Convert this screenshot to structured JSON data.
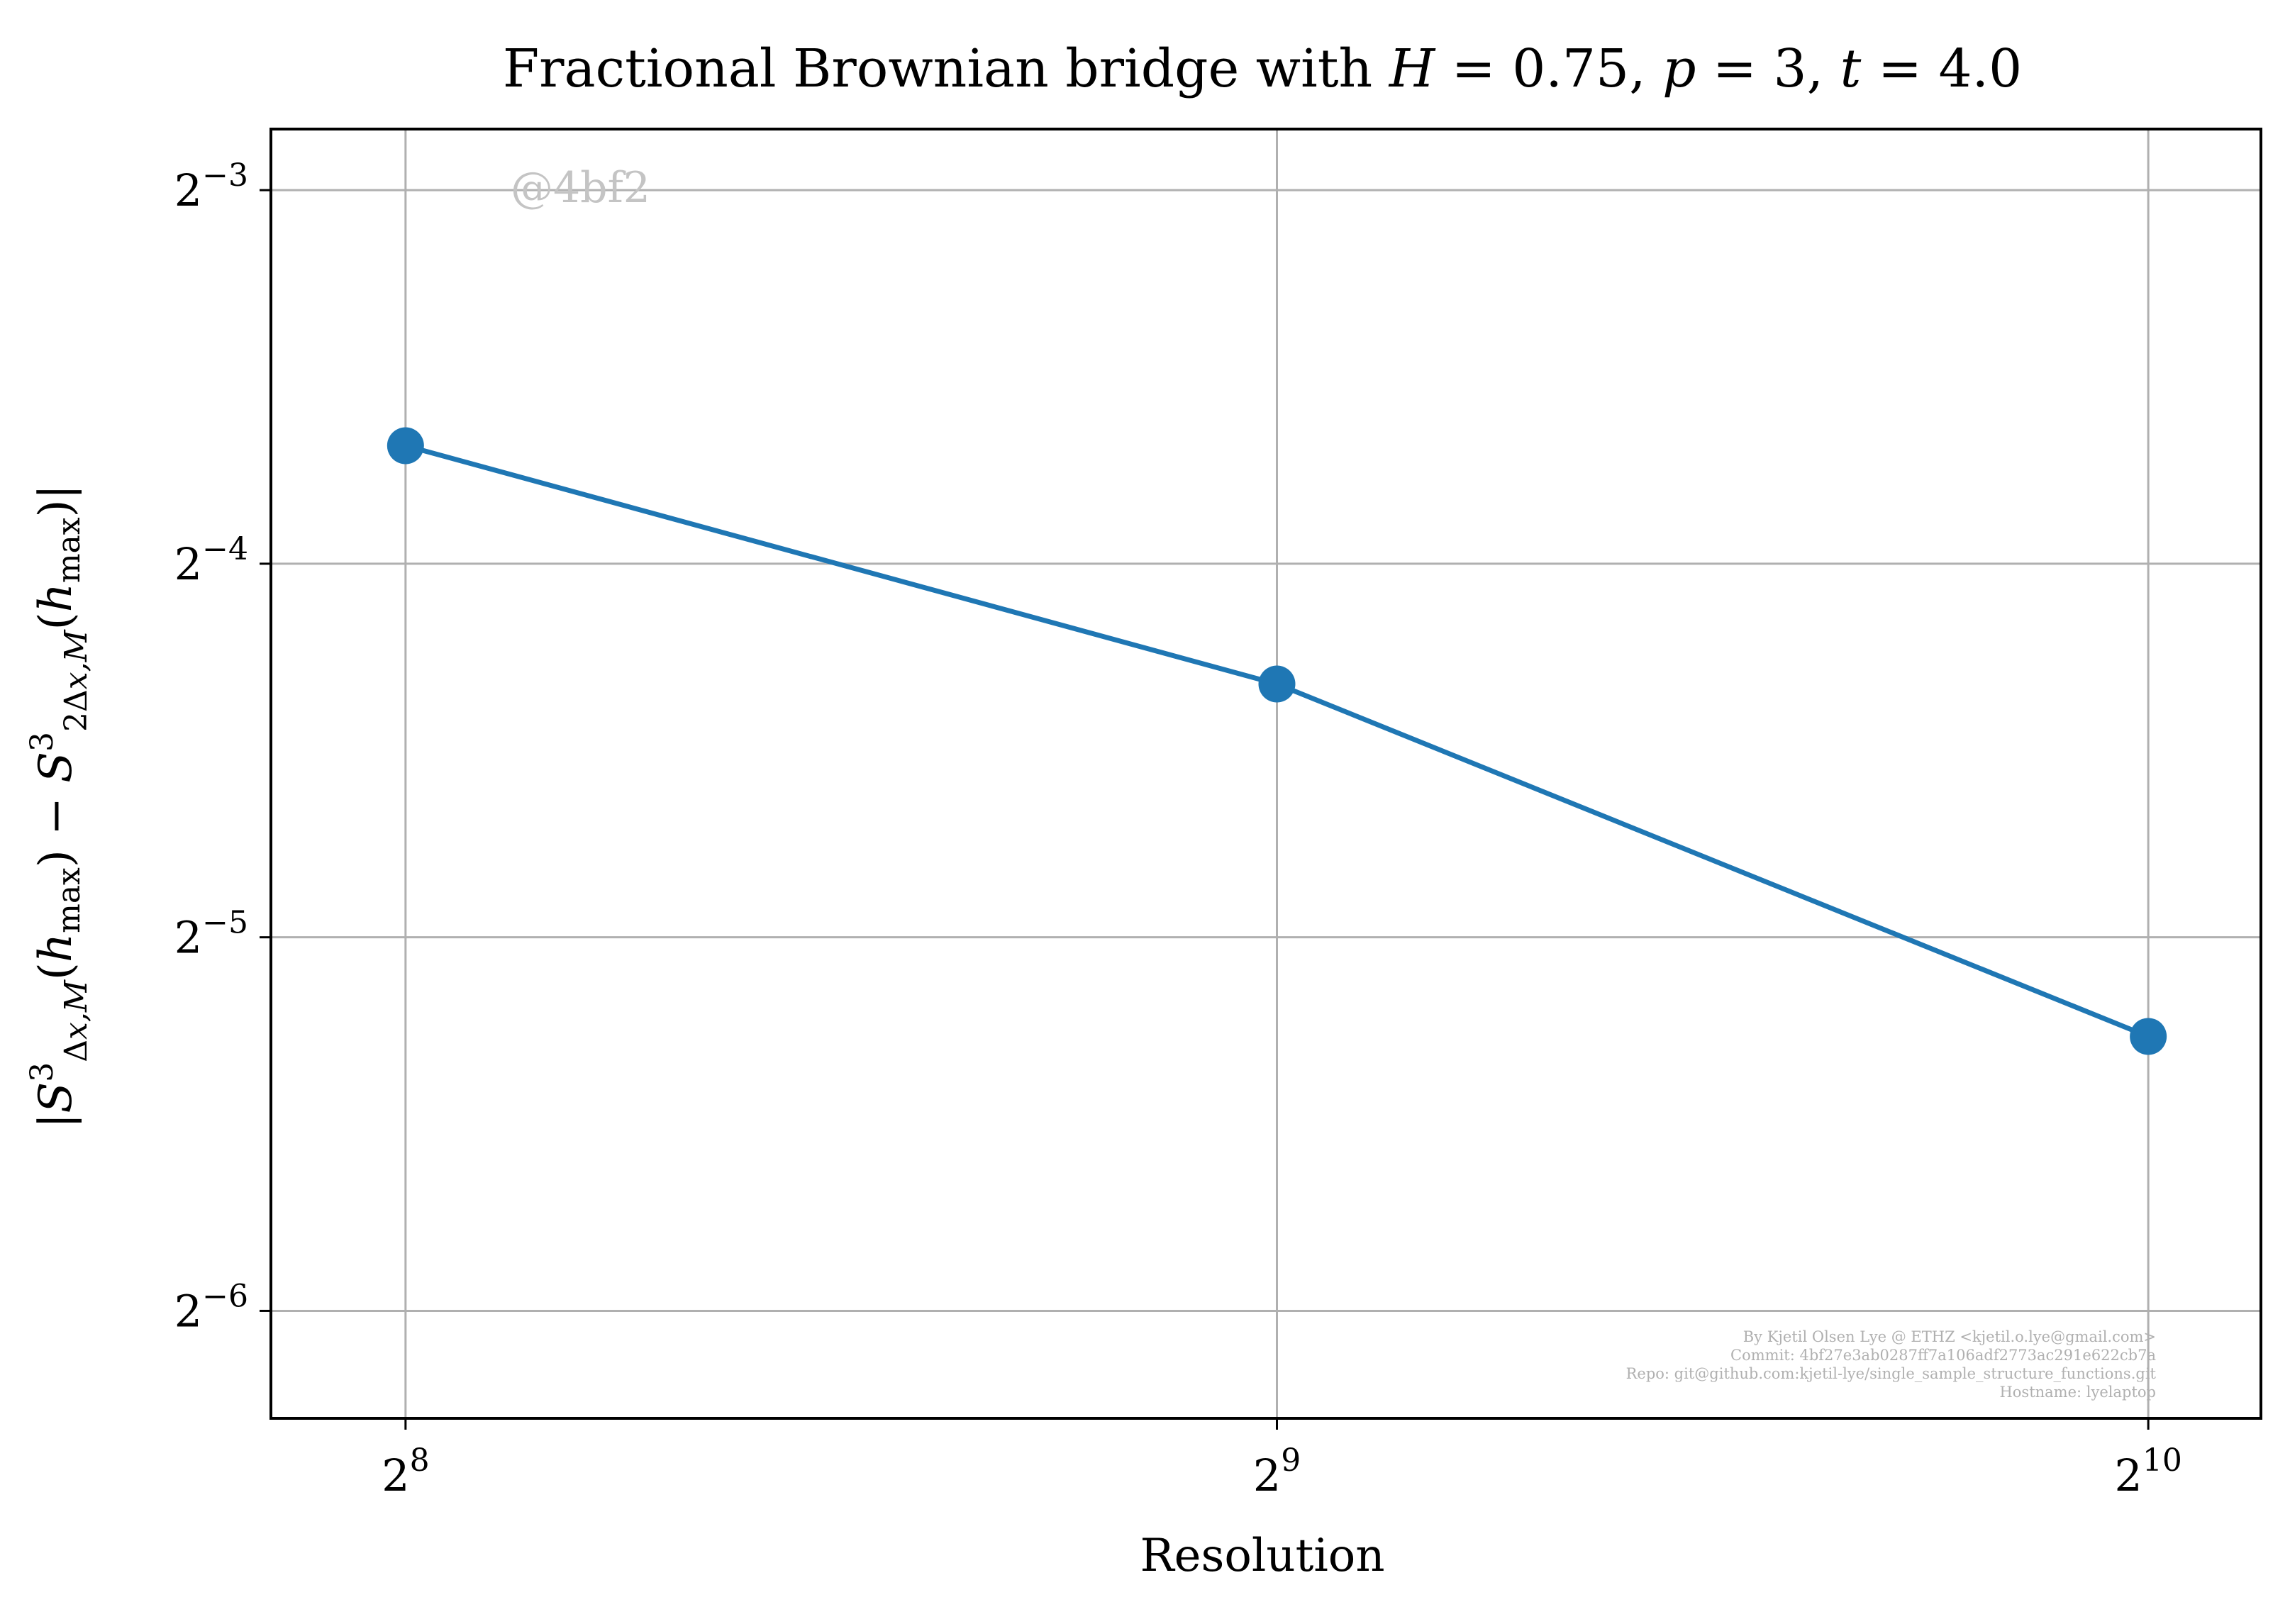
{
  "chart_data": {
    "type": "line",
    "title": "Fractional Brownian bridge with H = 0.75, p = 3, t = 4.0",
    "xlabel": "Resolution",
    "ylabel": "|S³Δx,M(hmax) − S³2Δx,M(hmax)|",
    "x_scale": "log2",
    "y_scale": "log2",
    "x": [
      256,
      512,
      1024
    ],
    "series": [
      {
        "values": [
          0.0778,
          0.05,
          0.026
        ],
        "color": "#1f77b4"
      }
    ],
    "xlim": [
      230,
      1120
    ],
    "ylim": [
      0.0128,
      0.14
    ],
    "x_ticks": [
      {
        "value": 256,
        "base": "2",
        "exp": "8"
      },
      {
        "value": 512,
        "base": "2",
        "exp": "9"
      },
      {
        "value": 1024,
        "base": "2",
        "exp": "10"
      }
    ],
    "y_ticks": [
      {
        "value": 0.125,
        "base": "2",
        "exp": "−3"
      },
      {
        "value": 0.0625,
        "base": "2",
        "exp": "−4"
      },
      {
        "value": 0.03125,
        "base": "2",
        "exp": "−5"
      },
      {
        "value": 0.015625,
        "base": "2",
        "exp": "−6"
      }
    ],
    "grid": true,
    "legend": "none"
  },
  "watermark": "@4bf2",
  "credits": [
    "By Kjetil Olsen Lye @ ETHZ <kjetil.o.lye@gmail.com>",
    "Commit: 4bf27e3ab0287ff7a106adf2773ac291e622cb7a",
    "Repo: git@github.com:kjetil-lye/single_sample_structure_functions.git",
    "Hostname: lyelaptop"
  ]
}
